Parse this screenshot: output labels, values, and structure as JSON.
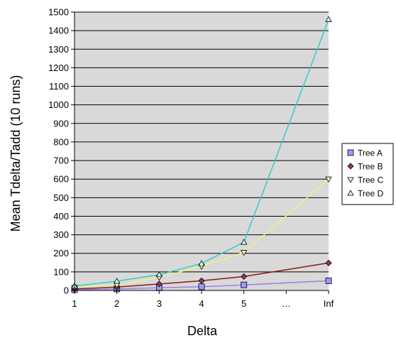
{
  "chart_data": {
    "type": "line",
    "title": "",
    "xlabel": "Delta",
    "ylabel": "Mean Tdelta/Tadd (10 runs)",
    "categories": [
      "1",
      "2",
      "3",
      "4",
      "5",
      "…",
      "Inf"
    ],
    "ylim": [
      0,
      1500
    ],
    "yticks": [
      0,
      100,
      200,
      300,
      400,
      500,
      600,
      700,
      800,
      900,
      1000,
      1100,
      1200,
      1300,
      1400,
      1500
    ],
    "grid": true,
    "legend_position": "right",
    "series": [
      {
        "name": "Tree A",
        "marker": "square",
        "marker_color": "#9999ff",
        "line_color": "#9b7fe6",
        "points": [
          {
            "x": "1",
            "y": 4
          },
          {
            "x": "2",
            "y": 8
          },
          {
            "x": "3",
            "y": 14
          },
          {
            "x": "4",
            "y": 20
          },
          {
            "x": "5",
            "y": 30
          },
          {
            "x": "Inf",
            "y": 52
          }
        ]
      },
      {
        "name": "Tree B",
        "marker": "diamond",
        "marker_color": "#993366",
        "line_color": "#8b1a1a",
        "points": [
          {
            "x": "1",
            "y": 8
          },
          {
            "x": "2",
            "y": 18
          },
          {
            "x": "3",
            "y": 35
          },
          {
            "x": "4",
            "y": 52
          },
          {
            "x": "5",
            "y": 75
          },
          {
            "x": "Inf",
            "y": 148
          }
        ]
      },
      {
        "name": "Tree C",
        "marker": "triangle-down",
        "marker_color": "#ffffcc",
        "line_color": "#f0f080",
        "points": [
          {
            "x": "1",
            "y": 16
          },
          {
            "x": "2",
            "y": 30
          },
          {
            "x": "3",
            "y": 70
          },
          {
            "x": "4",
            "y": 130
          },
          {
            "x": "5",
            "y": 205
          },
          {
            "x": "Inf",
            "y": 600
          }
        ]
      },
      {
        "name": "Tree D",
        "marker": "triangle-up",
        "marker_color": "#ccffff",
        "line_color": "#33cccc",
        "points": [
          {
            "x": "1",
            "y": 24
          },
          {
            "x": "2",
            "y": 50
          },
          {
            "x": "3",
            "y": 85
          },
          {
            "x": "4",
            "y": 145
          },
          {
            "x": "5",
            "y": 260
          },
          {
            "x": "Inf",
            "y": 1460
          }
        ]
      }
    ]
  }
}
